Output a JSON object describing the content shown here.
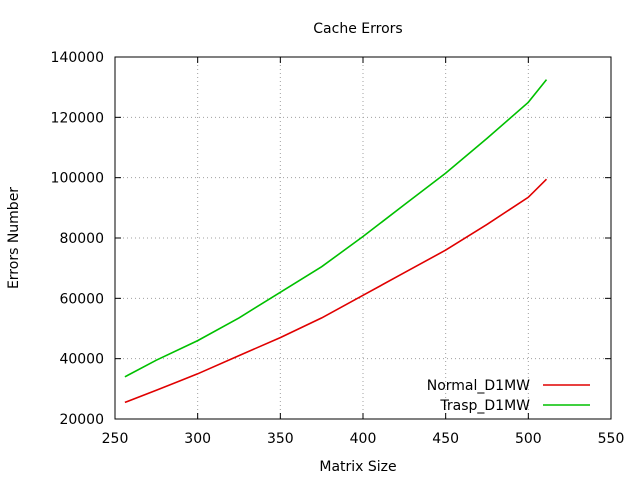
{
  "chart_data": {
    "type": "line",
    "title": "Cache Errors",
    "xlabel": "Matrix Size",
    "ylabel": "Errors Number",
    "xlim": [
      250,
      550
    ],
    "ylim": [
      20000,
      140000
    ],
    "x_ticks": [
      250,
      300,
      350,
      400,
      450,
      500,
      550
    ],
    "y_ticks": [
      20000,
      40000,
      60000,
      80000,
      100000,
      120000,
      140000
    ],
    "grid": true,
    "legend_position": "bottom-right",
    "series": [
      {
        "name": "Normal_D1MW",
        "color": "#e00000",
        "x": [
          256,
          275,
          300,
          325,
          350,
          375,
          400,
          425,
          450,
          475,
          500,
          511
        ],
        "y": [
          25500,
          29500,
          35000,
          41000,
          47000,
          53500,
          61000,
          68500,
          76000,
          84500,
          93500,
          99500
        ]
      },
      {
        "name": "Trasp_D1MW",
        "color": "#00c000",
        "x": [
          256,
          275,
          300,
          325,
          350,
          375,
          400,
          425,
          450,
          475,
          500,
          511
        ],
        "y": [
          34000,
          39500,
          46000,
          53500,
          62000,
          70500,
          80500,
          91000,
          101500,
          113000,
          125000,
          132500
        ]
      }
    ]
  }
}
